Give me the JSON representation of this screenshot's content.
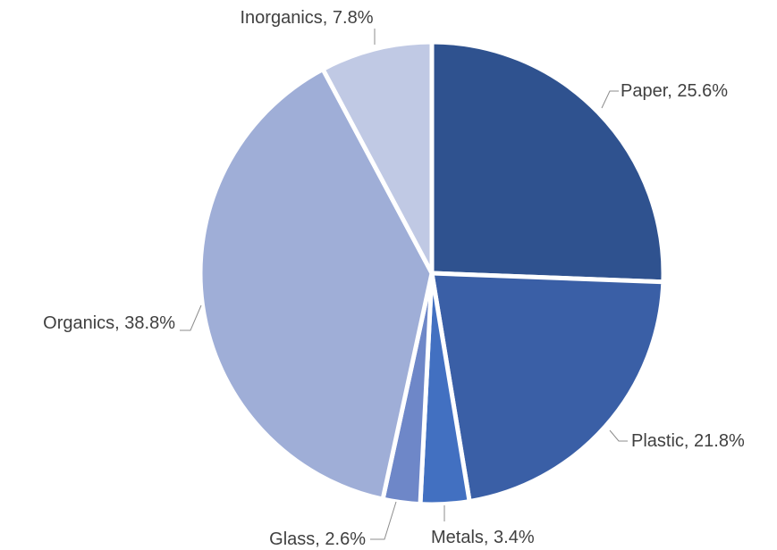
{
  "chart_data": {
    "type": "pie",
    "title": "",
    "start_angle_deg": 0,
    "direction": "clockwise",
    "slices": [
      {
        "label": "Paper, 25.6%",
        "category": "Paper",
        "value": 25.6,
        "color": "#2f528f"
      },
      {
        "label": "Plastic, 21.8%",
        "category": "Plastic",
        "value": 21.8,
        "color": "#3a5fa6"
      },
      {
        "label": "Metals, 3.4%",
        "category": "Metals",
        "value": 3.4,
        "color": "#4270c1"
      },
      {
        "label": "Glass, 2.6%",
        "category": "Glass",
        "value": 2.6,
        "color": "#6e87c8"
      },
      {
        "label": "Organics, 38.8%",
        "category": "Organics",
        "value": 38.8,
        "color": "#9faed7"
      },
      {
        "label": "Inorganics, 7.8%",
        "category": "Inorganics",
        "value": 7.8,
        "color": "#c0c9e4"
      }
    ],
    "legend": "none"
  }
}
